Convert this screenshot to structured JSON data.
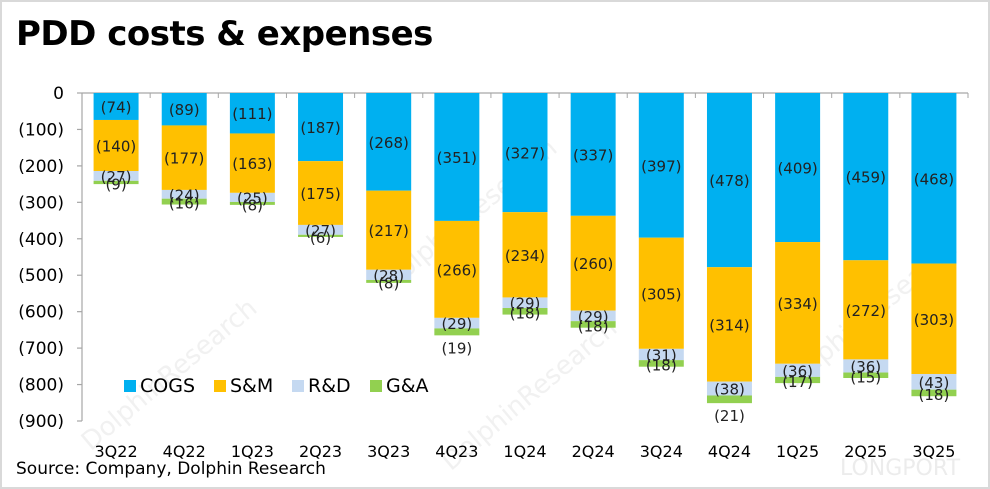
{
  "chart_data": {
    "type": "bar",
    "stacked": true,
    "title": "PDD costs & expenses",
    "source": "Source: Company,  Dolphin Research",
    "xlabel": "",
    "ylabel": "",
    "ylim": [
      -900,
      0
    ],
    "yticks": [
      0,
      -100,
      -200,
      -300,
      -400,
      -500,
      -600,
      -700,
      -800,
      -900
    ],
    "ytick_labels": [
      "0",
      "(100)",
      "(200)",
      "(300)",
      "(400)",
      "(500)",
      "(600)",
      "(700)",
      "(800)",
      "(900)"
    ],
    "grid": false,
    "legend_position": "bottom-left",
    "categories": [
      "3Q22",
      "4Q22",
      "1Q23",
      "2Q23",
      "3Q23",
      "4Q23",
      "1Q24",
      "2Q24",
      "3Q24",
      "4Q24",
      "1Q25",
      "2Q25",
      "3Q25"
    ],
    "series": [
      {
        "name": "COGS",
        "color": "#00b0f0",
        "values": [
          -74,
          -89,
          -111,
          -187,
          -268,
          -351,
          -327,
          -337,
          -397,
          -478,
          -409,
          -459,
          -468
        ]
      },
      {
        "name": "S&M",
        "color": "#ffc000",
        "values": [
          -140,
          -177,
          -163,
          -175,
          -217,
          -266,
          -234,
          -260,
          -305,
          -314,
          -334,
          -272,
          -303
        ]
      },
      {
        "name": "R&D",
        "color": "#c5d9f1",
        "values": [
          -27,
          -24,
          -25,
          -27,
          -28,
          -29,
          -29,
          -29,
          -31,
          -38,
          -36,
          -36,
          -43
        ]
      },
      {
        "name": "G&A",
        "color": "#92d050",
        "values": [
          -9,
          -16,
          -8,
          -6,
          -8,
          -19,
          -18,
          -18,
          -18,
          -21,
          -17,
          -15,
          -18
        ]
      }
    ]
  },
  "watermarks": {
    "text": "DolphinResearch",
    "brand": "LONGPORT"
  }
}
